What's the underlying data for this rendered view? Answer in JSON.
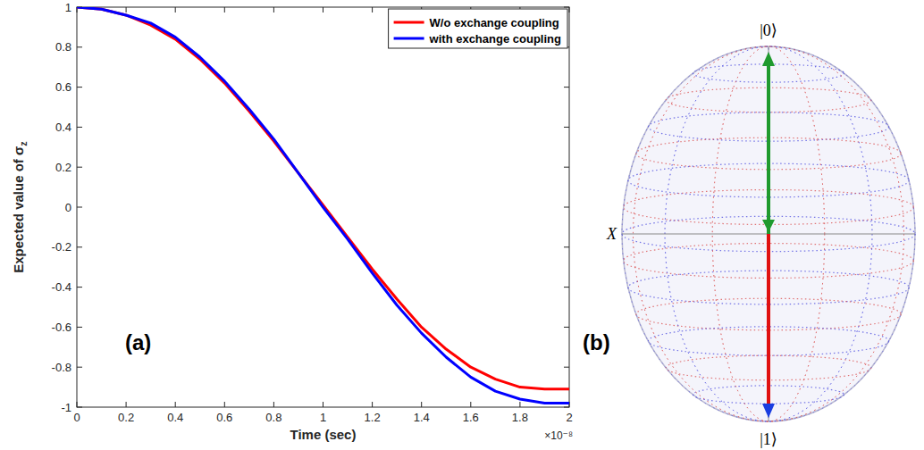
{
  "chart_data": {
    "type": "line",
    "xlabel": "Time (sec)",
    "ylabel": "Expected value of σz",
    "x_multiplier": "×10⁻⁸",
    "panel_label": "(a)",
    "x": [
      0,
      0.1,
      0.2,
      0.3,
      0.4,
      0.5,
      0.6,
      0.7,
      0.8,
      0.9,
      1.0,
      1.1,
      1.2,
      1.3,
      1.4,
      1.5,
      1.6,
      1.7,
      1.8,
      1.9,
      2.0
    ],
    "series": [
      {
        "name": "W/o exchange coupling",
        "color": "#ff0000",
        "values": [
          1,
          0.99,
          0.96,
          0.91,
          0.84,
          0.74,
          0.62,
          0.48,
          0.33,
          0.17,
          0.01,
          -0.15,
          -0.31,
          -0.46,
          -0.6,
          -0.71,
          -0.8,
          -0.86,
          -0.9,
          -0.91,
          -0.91
        ]
      },
      {
        "name": "with exchange coupling",
        "color": "#0000ff",
        "values": [
          1,
          0.99,
          0.96,
          0.92,
          0.85,
          0.75,
          0.63,
          0.49,
          0.34,
          0.17,
          0.0,
          -0.16,
          -0.33,
          -0.49,
          -0.63,
          -0.75,
          -0.85,
          -0.92,
          -0.96,
          -0.98,
          -0.98
        ]
      }
    ],
    "xlim": [
      0,
      2
    ],
    "xticks": [
      0,
      0.2,
      0.4,
      0.6,
      0.8,
      1,
      1.2,
      1.4,
      1.6,
      1.8,
      2
    ],
    "ylim": [
      -1,
      1
    ],
    "yticks": [
      -1,
      -0.8,
      -0.6,
      -0.4,
      -0.2,
      0,
      0.2,
      0.4,
      0.6,
      0.8,
      1
    ],
    "grid": false,
    "legend": "upper right"
  },
  "bloch_sphere": {
    "panel_label": "(b)",
    "top_label": "|0⟩",
    "bottom_label": "|1⟩",
    "axis_label": "X"
  }
}
